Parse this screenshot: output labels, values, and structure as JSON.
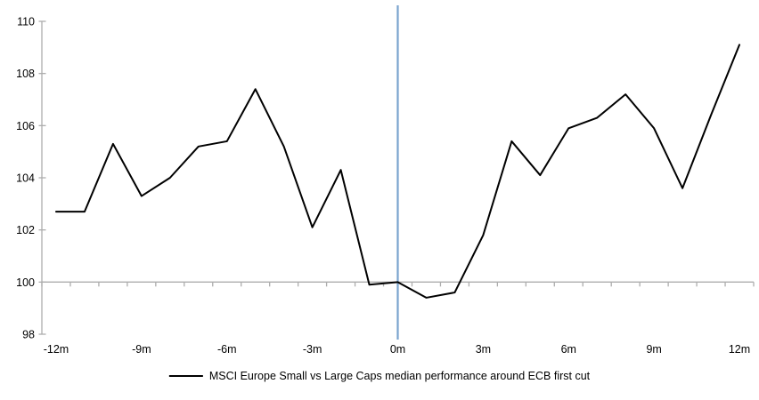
{
  "chart_data": {
    "type": "line",
    "title": "",
    "legend": "MSCI Europe Small vs Large Caps median performance around ECB first cut",
    "x": [
      -12,
      -11,
      -10,
      -9,
      -8,
      -7,
      -6,
      -5,
      -4,
      -3,
      -2,
      -1,
      0,
      1,
      2,
      3,
      4,
      5,
      6,
      7,
      8,
      9,
      10,
      11,
      12
    ],
    "series": [
      {
        "name": "MSCI Europe Small vs Large Caps median performance around ECB first cut",
        "values": [
          102.7,
          102.7,
          105.3,
          103.3,
          104.0,
          105.2,
          105.4,
          107.4,
          105.2,
          102.1,
          104.3,
          99.9,
          100.0,
          99.4,
          99.6,
          101.8,
          105.4,
          104.1,
          105.9,
          106.3,
          107.2,
          105.9,
          103.6,
          106.4,
          109.1
        ]
      }
    ],
    "xlabel": "",
    "ylabel": "",
    "ylim": [
      98,
      110
    ],
    "y_ticks": [
      98,
      100,
      102,
      104,
      106,
      108,
      110
    ],
    "x_tick_label_months": [
      -12,
      -9,
      -6,
      -3,
      0,
      3,
      6,
      9,
      12
    ],
    "x_tick_labels": [
      "-12m",
      "-9m",
      "-6m",
      "-3m",
      "0m",
      "3m",
      "6m",
      "9m",
      "12m"
    ],
    "x_axis_cross_y": 100,
    "event_line_month": 0,
    "grid": "off",
    "legend_position": "bottom",
    "colors": {
      "series_line": "#000000",
      "event_line": "#7AA4CE",
      "axis": "#ADADAD",
      "text": "#000000"
    }
  }
}
